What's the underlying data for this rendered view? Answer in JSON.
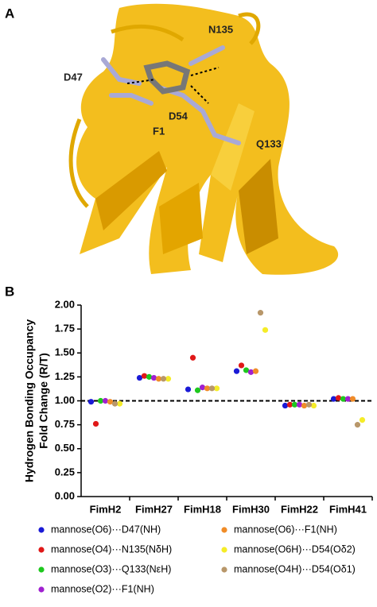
{
  "panels": {
    "a": "A",
    "b": "B"
  },
  "structure_labels": [
    "N135",
    "D47",
    "D54",
    "F1",
    "Q133"
  ],
  "chart_data": {
    "type": "dot",
    "ylabel": [
      "Hydrogen Bonding Occupancy",
      "Fold Change (R/T)"
    ],
    "categories": [
      "FimH2",
      "FimH27",
      "FimH18",
      "FimH30",
      "FimH22",
      "FimH41"
    ],
    "ylim": [
      0,
      2
    ],
    "yticks": [
      {
        "value": 0,
        "label": "0.00"
      },
      {
        "value": 0.25,
        "label": "0.25"
      },
      {
        "value": 0.5,
        "label": "0.50"
      },
      {
        "value": 0.75,
        "label": "0.75"
      },
      {
        "value": 1,
        "label": "1.00"
      },
      {
        "value": 1.25,
        "label": "1.25"
      },
      {
        "value": 1.5,
        "label": "1.50"
      },
      {
        "value": 1.75,
        "label": "1.75"
      },
      {
        "value": 2,
        "label": "2.00"
      }
    ],
    "reference_line": 1,
    "series": [
      {
        "name": "mannose(O6)···D47(NH)",
        "color": "#1a1ad6",
        "values": [
          0.99,
          1.24,
          1.12,
          1.31,
          0.95,
          1.02
        ]
      },
      {
        "name": "mannose(O4)···N135(NδH)",
        "color": "#e01818",
        "values": [
          0.76,
          1.26,
          1.45,
          1.37,
          0.96,
          1.03
        ]
      },
      {
        "name": "mannose(O3)···Q133(NεH)",
        "color": "#1ec81e",
        "values": [
          1.0,
          1.25,
          1.11,
          1.32,
          0.96,
          1.02
        ]
      },
      {
        "name": "mannose(O2)···F1(NH)",
        "color": "#a020d0",
        "values": [
          1.0,
          1.24,
          1.14,
          1.3,
          0.96,
          1.02
        ]
      },
      {
        "name": "mannose(O6)···F1(NH)",
        "color": "#f08c28",
        "values": [
          0.99,
          1.23,
          1.13,
          1.31,
          0.95,
          1.02
        ]
      },
      {
        "name": "mannose(O6H)···D54(Oδ2)",
        "color": "#f5ec28",
        "values": [
          0.97,
          1.23,
          1.13,
          1.74,
          0.95,
          0.8
        ]
      },
      {
        "name": "mannose(O4H)···D54(Oδ1)",
        "color": "#b8976a",
        "values": [
          0.97,
          1.23,
          1.13,
          1.92,
          0.96,
          0.75
        ]
      }
    ]
  }
}
